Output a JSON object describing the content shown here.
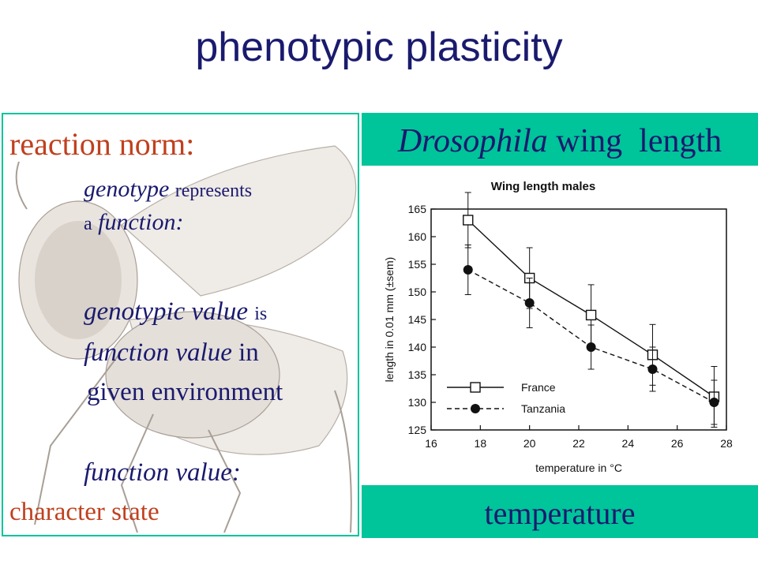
{
  "slide": {
    "title": "phenotypic plasticity"
  },
  "left_panel": {
    "heading": "reaction norm:",
    "genotype_word": "genotype",
    "represents_word": "represents",
    "a_word": "a",
    "function_word": "function:",
    "genotypic_value": "genotypic value",
    "is_word": "is",
    "function_value": "function value",
    "in_word": "in",
    "given_environment": "given environment",
    "function_value_label": "function value:",
    "character_state": "character state"
  },
  "right_panel": {
    "header_italic": "Drosophila",
    "header_rest": "wing  length",
    "footer": "temperature"
  },
  "colors": {
    "title": "#1a1a6e",
    "accent_orange": "#c0401e",
    "panel_green": "#00c49a"
  },
  "chart_data": {
    "type": "line",
    "title": "Wing length males",
    "xlabel": "temperature in °C",
    "ylabel": "length in 0.01 mm (±sem)",
    "xlim": [
      16,
      28
    ],
    "ylim": [
      125,
      165
    ],
    "xticks": [
      16,
      18,
      20,
      22,
      24,
      26,
      28
    ],
    "yticks": [
      125,
      130,
      135,
      140,
      145,
      150,
      155,
      160,
      165
    ],
    "grid": false,
    "legend_position": "bottom-left",
    "series": [
      {
        "name": "France",
        "marker": "open-square",
        "line": "solid",
        "x": [
          17.5,
          20,
          22.5,
          25,
          27.5
        ],
        "y": [
          163,
          152.5,
          145.8,
          138.6,
          131
        ],
        "err": [
          5.0,
          5.5,
          5.5,
          5.5,
          5.5
        ]
      },
      {
        "name": "Tanzania",
        "marker": "filled-circle",
        "line": "dashed",
        "x": [
          17.5,
          20,
          22.5,
          25,
          27.5
        ],
        "y": [
          154,
          148,
          140,
          136,
          130
        ],
        "err": [
          4.5,
          4.5,
          4.0,
          4.0,
          4.0
        ]
      }
    ]
  }
}
